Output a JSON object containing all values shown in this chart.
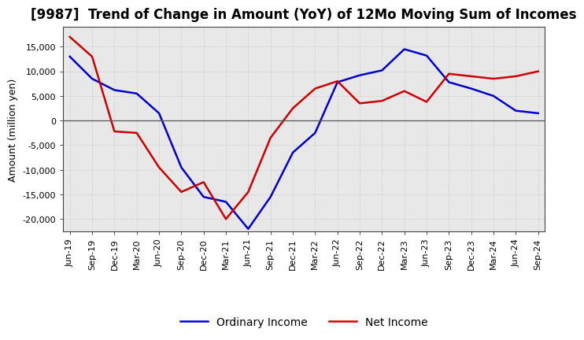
{
  "title": "[9987]  Trend of Change in Amount (YoY) of 12Mo Moving Sum of Incomes",
  "ylabel": "Amount (million yen)",
  "x_labels": [
    "Jun-19",
    "Sep-19",
    "Dec-19",
    "Mar-20",
    "Jun-20",
    "Sep-20",
    "Dec-20",
    "Mar-21",
    "Jun-21",
    "Sep-21",
    "Dec-21",
    "Mar-22",
    "Jun-22",
    "Sep-22",
    "Dec-22",
    "Mar-23",
    "Jun-23",
    "Sep-23",
    "Dec-23",
    "Mar-24",
    "Jun-24",
    "Sep-24"
  ],
  "ordinary_income": [
    13000,
    8500,
    6200,
    5500,
    1500,
    -9500,
    -15500,
    -16500,
    -22000,
    -15500,
    -6500,
    -2500,
    7800,
    9200,
    10200,
    14500,
    13200,
    7800,
    6500,
    5000,
    2000,
    1500
  ],
  "net_income": [
    17000,
    13000,
    -2200,
    -2500,
    -9500,
    -14500,
    -12500,
    -20000,
    -14500,
    -3500,
    2500,
    6500,
    8000,
    3500,
    4000,
    6000,
    3800,
    9500,
    9000,
    8500,
    9000,
    10000
  ],
  "ordinary_color": "#0000cc",
  "net_color": "#cc0000",
  "ylim": [
    -22500,
    19000
  ],
  "yticks": [
    -20000,
    -15000,
    -10000,
    -5000,
    0,
    5000,
    10000,
    15000
  ],
  "plot_bg_color": "#e8e8e8",
  "background_color": "#ffffff",
  "grid_color": "#bbbbbb",
  "title_fontsize": 12,
  "axis_fontsize": 9,
  "tick_fontsize": 8,
  "legend_fontsize": 10
}
